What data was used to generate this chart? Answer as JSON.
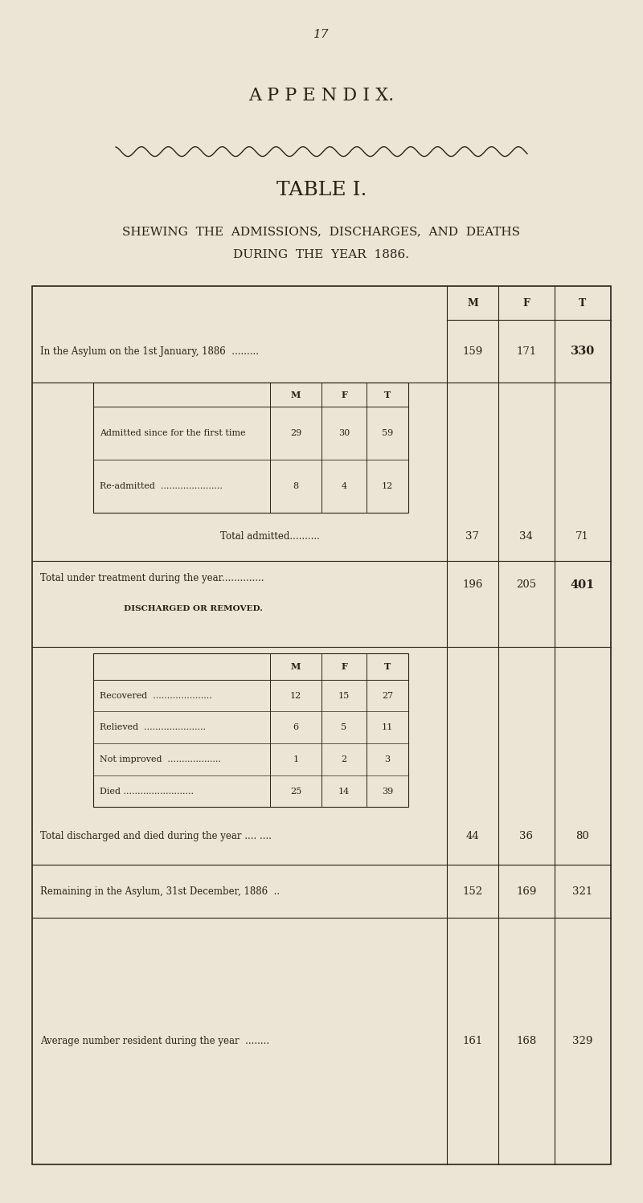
{
  "page_number": "17",
  "bg_color": "#ece5d5",
  "text_color": "#2a2018",
  "appendix_title": "A P P E N D I X.",
  "table_title": "TABLE I.",
  "subtitle_line1": "SHEWING  THE  ADMISSIONS,  DISCHARGES,  AND  DEATHS",
  "subtitle_line2": "DURING  THE  YEAR  1886.",
  "row_in_asylum": {
    "label": "In the Asylum on the 1st January, 1886  .........",
    "M": 159,
    "F": 171,
    "T": 330
  },
  "row_admitted_first": {
    "label": "Admitted since for the first time",
    "M": 29,
    "F": 30,
    "T": 59
  },
  "row_readmitted": {
    "label": "Re-admitted  ......................",
    "M": 8,
    "F": 4,
    "T": 12
  },
  "row_total_admitted": {
    "label": "Total admitted..........",
    "M": 37,
    "F": 34,
    "T": 71
  },
  "row_total_treatment": {
    "label": "Total under treatment during the year..............",
    "M": 196,
    "F": 205,
    "T": 401
  },
  "discharged_header": "DISCHARGED OR REMOVED.",
  "row_recovered": {
    "label": "Recovered  .....................",
    "M": 12,
    "F": 15,
    "T": 27
  },
  "row_relieved": {
    "label": "Relieved  ......................",
    "M": 6,
    "F": 5,
    "T": 11
  },
  "row_not_improved": {
    "label": "Not improved  ...................",
    "M": 1,
    "F": 2,
    "T": 3
  },
  "row_died": {
    "label": "Died .........................",
    "M": 25,
    "F": 14,
    "T": 39
  },
  "row_total_discharged": {
    "label": "Total discharged and died during the year .... ....",
    "M": 44,
    "F": 36,
    "T": 80
  },
  "row_remaining": {
    "label": "Remaining in the Asylum, 31st December, 1886  ..",
    "M": 152,
    "F": 169,
    "T": 321
  },
  "row_average": {
    "label": "Average number resident during the year  ........",
    "M": 161,
    "F": 168,
    "T": 329
  }
}
